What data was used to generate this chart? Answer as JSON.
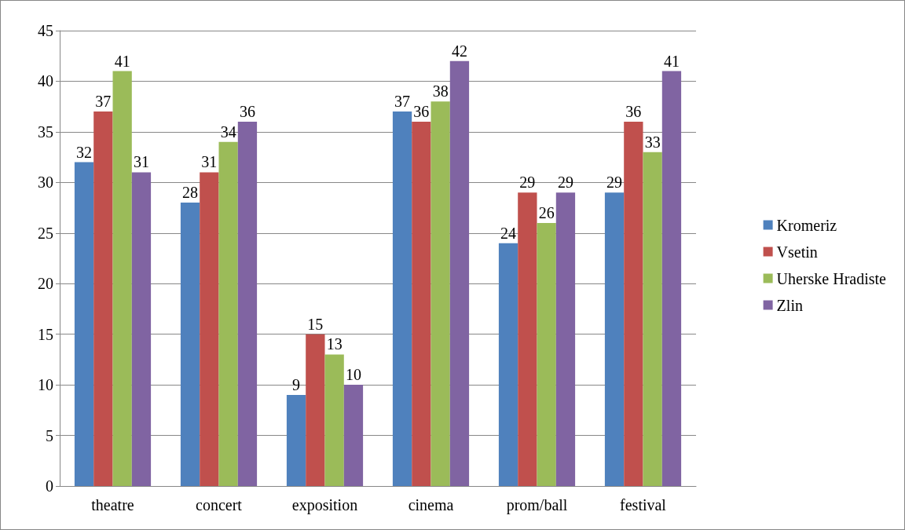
{
  "chart_data": {
    "type": "bar",
    "categories": [
      "theatre",
      "concert",
      "exposition",
      "cinema",
      "prom/ball",
      "festival"
    ],
    "series": [
      {
        "name": "Kromeriz",
        "color": "#4f81bd",
        "values": [
          32,
          28,
          9,
          37,
          24,
          29
        ]
      },
      {
        "name": "Vsetin",
        "color": "#c0504d",
        "values": [
          37,
          31,
          15,
          36,
          29,
          36
        ]
      },
      {
        "name": "Uherske Hradiste",
        "color": "#9bbb59",
        "values": [
          41,
          34,
          13,
          38,
          26,
          33
        ]
      },
      {
        "name": "Zlin",
        "color": "#8064a2",
        "values": [
          31,
          36,
          10,
          42,
          29,
          41
        ]
      }
    ],
    "ylim": [
      0,
      45
    ],
    "yticks": [
      0,
      5,
      10,
      15,
      20,
      25,
      30,
      35,
      40,
      45
    ],
    "grid": "y",
    "legend": "right",
    "data_labels": true
  }
}
